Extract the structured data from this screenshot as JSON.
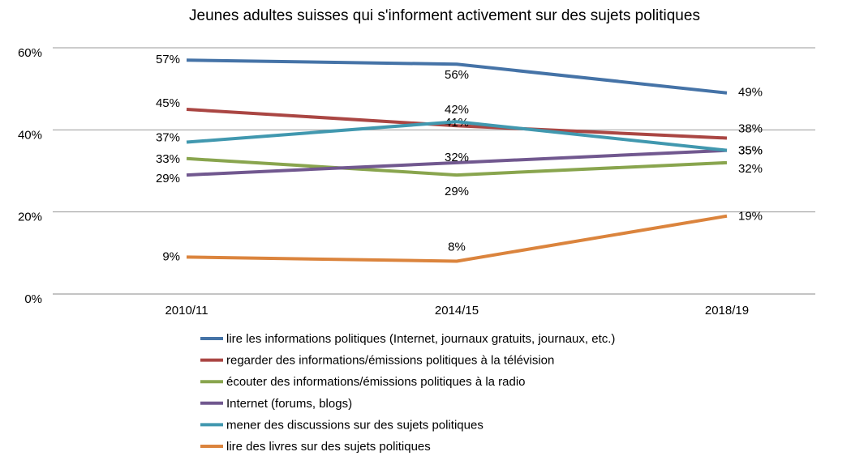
{
  "chart_data": {
    "type": "line",
    "title": "Jeunes adultes suisses qui s'informent activement sur des sujets politiques",
    "categories": [
      "2010/11",
      "2014/15",
      "2018/19"
    ],
    "series": [
      {
        "name": "lire les informations politiques (Internet, journaux gratuits, journaux, etc.)",
        "color": "#4573a7",
        "values": [
          57,
          56,
          49
        ],
        "value_labels": [
          "57%",
          "56%",
          "49%"
        ]
      },
      {
        "name": "regarder des informations/émissions politiques à la télévision",
        "color": "#aa4643",
        "values": [
          45,
          41,
          38
        ],
        "value_labels": [
          "45%",
          "41%",
          "38%"
        ]
      },
      {
        "name": "écouter des informations/émissions politiques à la radio",
        "color": "#89a54e",
        "values": [
          33,
          29,
          32
        ],
        "value_labels": [
          "33%",
          "29%",
          "32%"
        ]
      },
      {
        "name": "Internet (forums, blogs)",
        "color": "#71588f",
        "values": [
          29,
          32,
          35
        ],
        "value_labels": [
          "29%",
          "32%",
          "35%"
        ]
      },
      {
        "name": "mener des discussions sur des sujets politiques",
        "color": "#4198af",
        "values": [
          37,
          42,
          35
        ],
        "value_labels": [
          "37%",
          "42%",
          "35%"
        ]
      },
      {
        "name": "lire des livres sur des sujets politiques",
        "color": "#db843d",
        "values": [
          9,
          8,
          19
        ],
        "value_labels": [
          "9%",
          "8%",
          "19%"
        ]
      }
    ],
    "ylim": [
      0,
      60
    ],
    "yticks": [
      {
        "value": 0,
        "label": "0%"
      },
      {
        "value": 20,
        "label": "20%"
      },
      {
        "value": 40,
        "label": "40%"
      },
      {
        "value": 60,
        "label": "60%"
      }
    ],
    "grid": true,
    "legend": "bottom"
  }
}
